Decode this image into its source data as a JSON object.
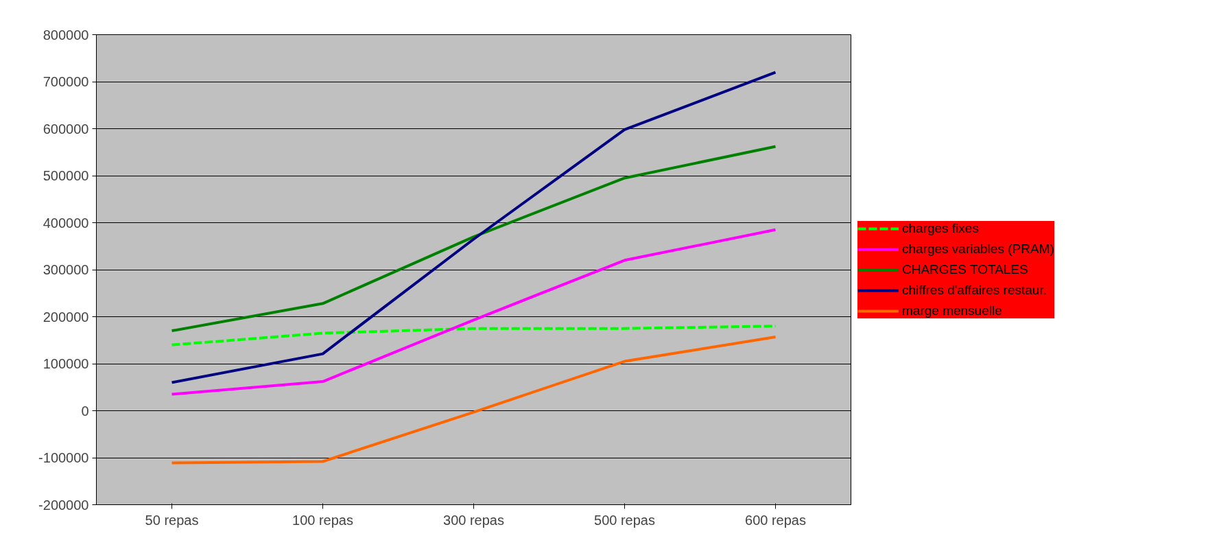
{
  "chart_data": {
    "type": "line",
    "categories": [
      "50 repas",
      "100 repas",
      "300 repas",
      "500 repas",
      "600 repas"
    ],
    "ylim": [
      -200000,
      800000
    ],
    "yticks": [
      -200000,
      -100000,
      0,
      100000,
      200000,
      300000,
      400000,
      500000,
      600000,
      700000,
      800000
    ],
    "grid": "y",
    "legend": "right",
    "marker": "none",
    "series": [
      {
        "name": "charges fixes",
        "color": "#00ff00",
        "line_style": "dashed",
        "values": [
          140000,
          165000,
          175000,
          175000,
          180000
        ]
      },
      {
        "name": "charges variables (PRAM)",
        "color": "#ff00ff",
        "values": [
          35000,
          62000,
          193000,
          320000,
          385000
        ]
      },
      {
        "name": "CHARGES TOTALES",
        "color": "#008000",
        "values": [
          170000,
          228000,
          370000,
          495000,
          562000
        ]
      },
      {
        "name": "chiffres d'affaires restaur.",
        "color": "#000080",
        "values": [
          60000,
          121000,
          365000,
          598000,
          720000
        ]
      },
      {
        "name": "marge mensuelle",
        "color": "#ff6600",
        "values": [
          -111000,
          -108000,
          -3000,
          105000,
          157000
        ]
      }
    ]
  }
}
